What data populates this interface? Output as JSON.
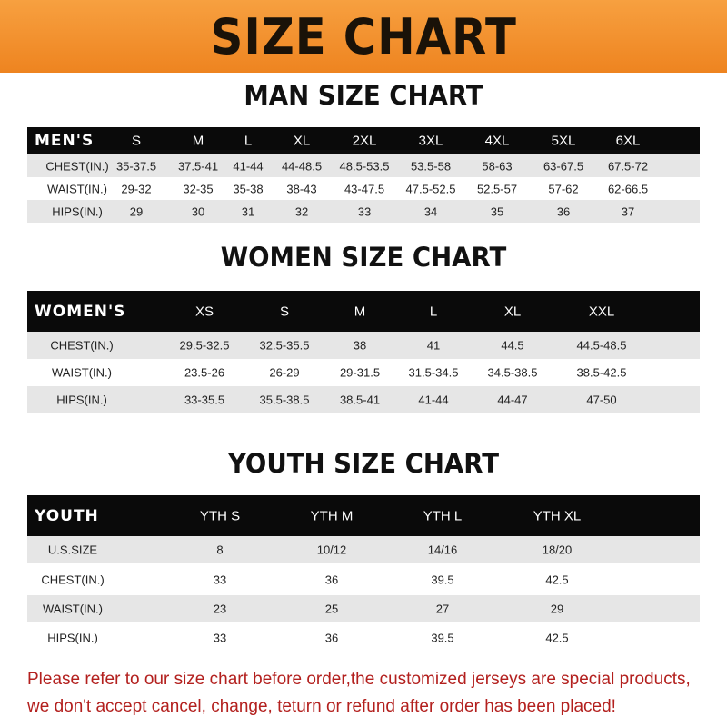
{
  "banner": {
    "title": "SIZE CHART",
    "color": "#ee8420"
  },
  "men": {
    "title": "MAN SIZE CHART",
    "header": [
      "MEN'S",
      "S",
      "M",
      "L",
      "XL",
      "2XL",
      "3XL",
      "4XL",
      "5XL",
      "6XL"
    ],
    "rows": [
      [
        "CHEST(IN.)",
        "35-37.5",
        "37.5-41",
        "41-44",
        "44-48.5",
        "48.5-53.5",
        "53.5-58",
        "58-63",
        "63-67.5",
        "67.5-72"
      ],
      [
        "WAIST(IN.)",
        "29-32",
        "32-35",
        "35-38",
        "38-43",
        "43-47.5",
        "47.5-52.5",
        "52.5-57",
        "57-62",
        "62-66.5"
      ],
      [
        "HIPS(IN.)",
        "29",
        "30",
        "31",
        "32",
        "33",
        "34",
        "35",
        "36",
        "37"
      ]
    ]
  },
  "women": {
    "title": "WOMEN SIZE CHART",
    "header": [
      "WOMEN'S",
      "XS",
      "S",
      "M",
      "L",
      "XL",
      "XXL"
    ],
    "rows": [
      [
        "CHEST(IN.)",
        "29.5-32.5",
        "32.5-35.5",
        "38",
        "41",
        "44.5",
        "44.5-48.5"
      ],
      [
        "WAIST(IN.)",
        "23.5-26",
        "26-29",
        "29-31.5",
        "31.5-34.5",
        "34.5-38.5",
        "38.5-42.5"
      ],
      [
        "HIPS(IN.)",
        "33-35.5",
        "35.5-38.5",
        "38.5-41",
        "41-44",
        "44-47",
        "47-50"
      ]
    ]
  },
  "youth": {
    "title": "YOUTH SIZE CHART",
    "header": [
      "YOUTH",
      "YTH S",
      "YTH M",
      "YTH L",
      "YTH XL"
    ],
    "rows": [
      [
        "U.S.SIZE",
        "8",
        "10/12",
        "14/16",
        "18/20"
      ],
      [
        "CHEST(IN.)",
        "33",
        "36",
        "39.5",
        "42.5"
      ],
      [
        "WAIST(IN.)",
        "23",
        "25",
        "27",
        "29"
      ],
      [
        "HIPS(IN.)",
        "33",
        "36",
        "39.5",
        "42.5"
      ]
    ]
  },
  "footer": {
    "line1": "Please refer to our size chart before order,the customized jerseys are special products,",
    "line2": "we don't accept cancel, change, teturn or refund after order has been placed!",
    "color": "#b3201e"
  }
}
